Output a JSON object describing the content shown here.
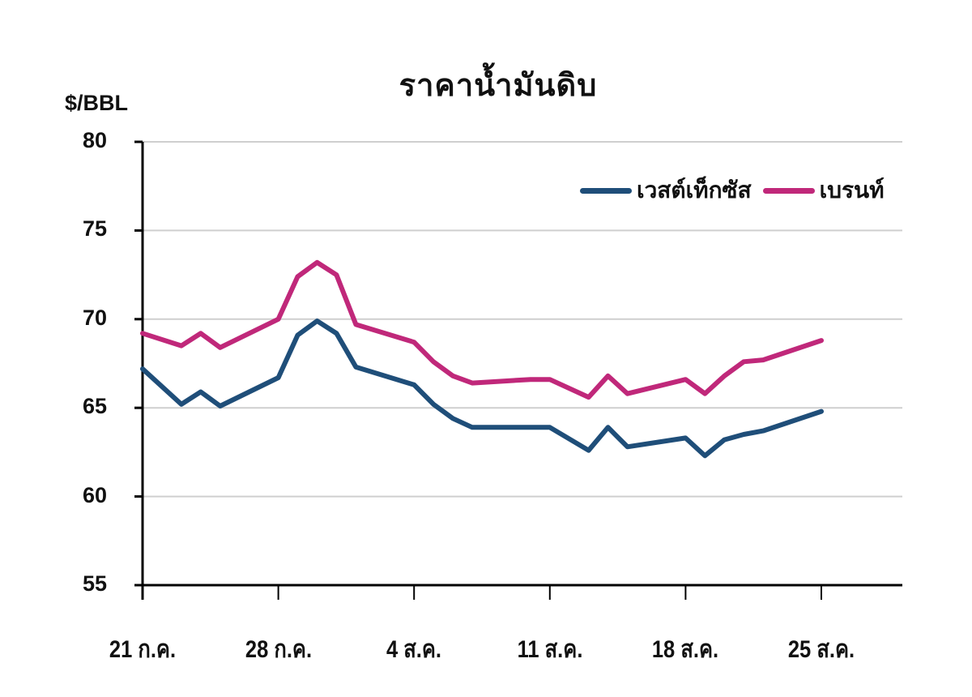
{
  "chart_data": {
    "type": "line",
    "title": "ราคาน้ำมันดิบ",
    "xlabel": "",
    "ylabel": "$/BBL",
    "ylim": [
      55,
      80
    ],
    "yticks": [
      55,
      60,
      65,
      70,
      75,
      80
    ],
    "grid": true,
    "legend_position": "top-right",
    "xtick_labels": [
      "21 ก.ค.",
      "28 ก.ค.",
      "4 ส.ค.",
      "11 ส.ค.",
      "18 ส.ค.",
      "25 ส.ค."
    ],
    "xtick_days": [
      0,
      7,
      14,
      21,
      28,
      35
    ],
    "x_days": [
      0,
      2,
      3,
      4,
      7,
      8,
      9,
      10,
      11,
      14,
      15,
      16,
      17,
      20,
      21,
      23,
      24,
      25,
      28,
      29,
      30,
      31,
      32,
      35
    ],
    "series": [
      {
        "name": "เวสต์เท็กซัส",
        "color": "#1f4e79",
        "values": [
          67.2,
          65.2,
          65.9,
          65.1,
          66.7,
          69.1,
          69.9,
          69.2,
          67.3,
          66.3,
          65.2,
          64.4,
          63.9,
          63.9,
          63.9,
          62.6,
          63.9,
          62.8,
          63.3,
          62.3,
          63.2,
          63.5,
          63.7,
          64.8
        ]
      },
      {
        "name": "เบรนท์",
        "color": "#c0287a",
        "values": [
          69.2,
          68.5,
          69.2,
          68.4,
          70.0,
          72.4,
          73.2,
          72.5,
          69.7,
          68.7,
          67.6,
          66.8,
          66.4,
          66.6,
          66.6,
          65.6,
          66.8,
          65.8,
          66.6,
          65.8,
          66.8,
          67.6,
          67.7,
          68.8
        ]
      }
    ]
  }
}
